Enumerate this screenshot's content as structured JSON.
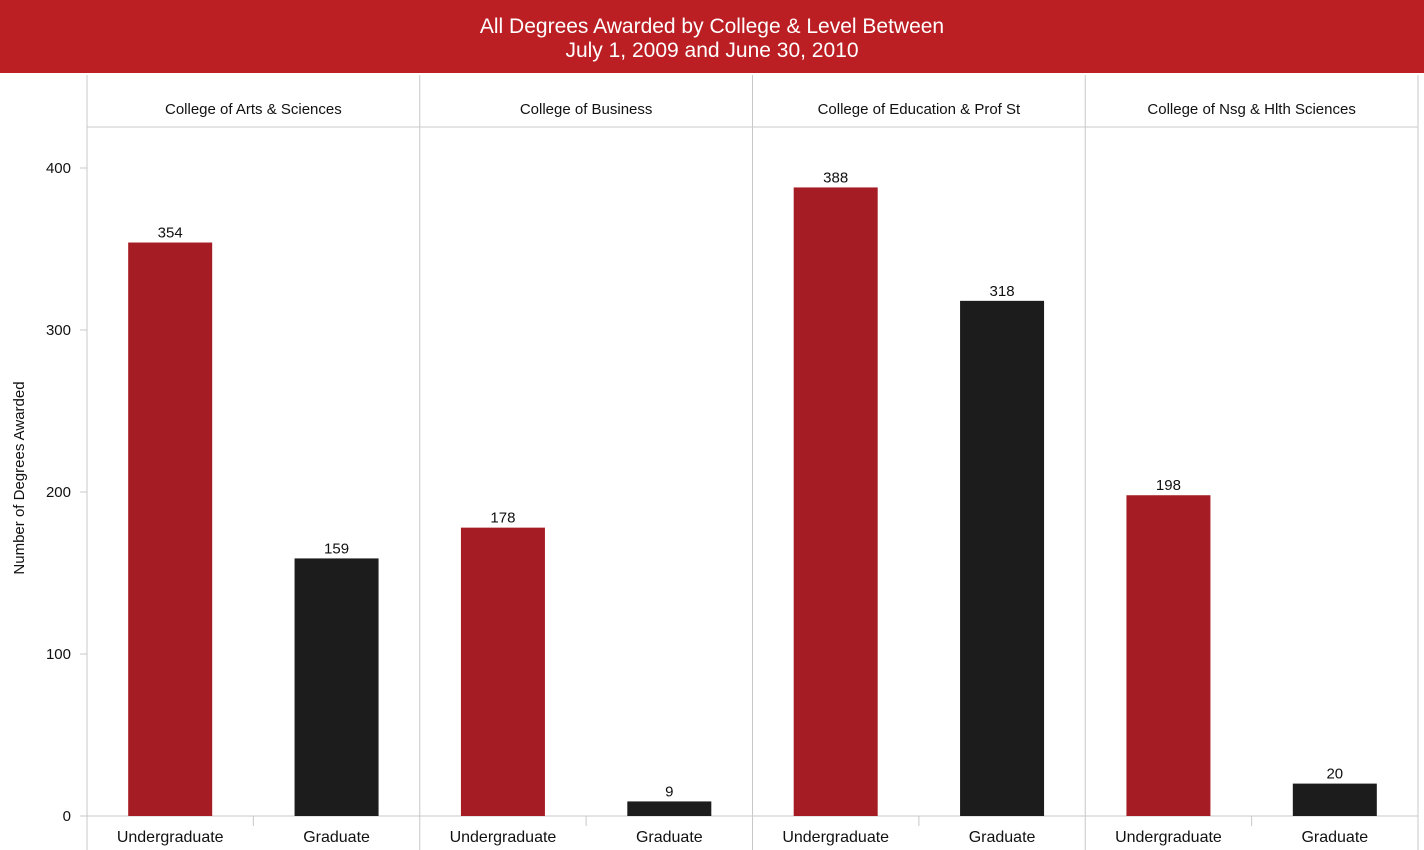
{
  "chart_data": {
    "type": "bar",
    "title": [
      "All Degrees Awarded by College & Level Between",
      "July 1, 2009 and June 30, 2010"
    ],
    "ylabel": "Number of Degrees Awarded",
    "ylim": [
      0,
      430
    ],
    "yticks": [
      0,
      100,
      200,
      300,
      400
    ],
    "grid": false,
    "colors": {
      "Undergraduate": "#a51c24",
      "Graduate": "#1c1c1c",
      "title_bg": "#bb1f24"
    },
    "panels": [
      {
        "college": "College of Arts & Sciences",
        "bars": [
          {
            "level": "Undergraduate",
            "value": 354
          },
          {
            "level": "Graduate",
            "value": 159
          }
        ]
      },
      {
        "college": "College of Business",
        "bars": [
          {
            "level": "Undergraduate",
            "value": 178
          },
          {
            "level": "Graduate",
            "value": 9
          }
        ]
      },
      {
        "college": "College of Education & Prof St",
        "bars": [
          {
            "level": "Undergraduate",
            "value": 388
          },
          {
            "level": "Graduate",
            "value": 318
          }
        ]
      },
      {
        "college": "College of Nsg & Hlth Sciences",
        "bars": [
          {
            "level": "Undergraduate",
            "value": 198
          },
          {
            "level": "Graduate",
            "value": 20
          }
        ]
      }
    ]
  }
}
